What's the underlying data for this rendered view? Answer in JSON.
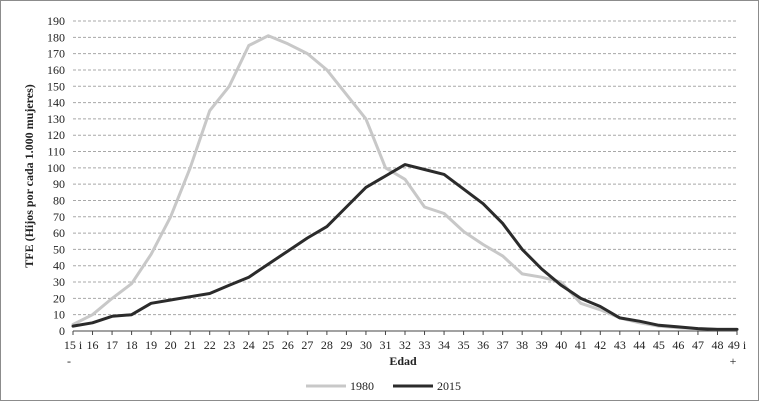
{
  "chart_data": {
    "type": "line",
    "title": "",
    "xlabel": "Edad",
    "ylabel": "TFE (Hijos por cada 1.000 mujeres)",
    "ylim": [
      0,
      190
    ],
    "ytick_step": 10,
    "grid": "horizontal dashed",
    "legend_position": "bottom-center",
    "categories": [
      {
        "top": "15 i",
        "bottom": "-"
      },
      {
        "top": "16",
        "bottom": ""
      },
      {
        "top": "17",
        "bottom": ""
      },
      {
        "top": "18",
        "bottom": ""
      },
      {
        "top": "19",
        "bottom": ""
      },
      {
        "top": "20",
        "bottom": ""
      },
      {
        "top": "21",
        "bottom": ""
      },
      {
        "top": "22",
        "bottom": ""
      },
      {
        "top": "23",
        "bottom": ""
      },
      {
        "top": "24",
        "bottom": ""
      },
      {
        "top": "25",
        "bottom": ""
      },
      {
        "top": "26",
        "bottom": ""
      },
      {
        "top": "27",
        "bottom": ""
      },
      {
        "top": "28",
        "bottom": ""
      },
      {
        "top": "29",
        "bottom": ""
      },
      {
        "top": "30",
        "bottom": ""
      },
      {
        "top": "31",
        "bottom": ""
      },
      {
        "top": "32",
        "bottom": ""
      },
      {
        "top": "33",
        "bottom": ""
      },
      {
        "top": "34",
        "bottom": ""
      },
      {
        "top": "35",
        "bottom": ""
      },
      {
        "top": "36",
        "bottom": ""
      },
      {
        "top": "37",
        "bottom": ""
      },
      {
        "top": "38",
        "bottom": ""
      },
      {
        "top": "39",
        "bottom": ""
      },
      {
        "top": "40",
        "bottom": ""
      },
      {
        "top": "41",
        "bottom": ""
      },
      {
        "top": "42",
        "bottom": ""
      },
      {
        "top": "43",
        "bottom": ""
      },
      {
        "top": "44",
        "bottom": ""
      },
      {
        "top": "45",
        "bottom": ""
      },
      {
        "top": "46",
        "bottom": ""
      },
      {
        "top": "47",
        "bottom": ""
      },
      {
        "top": "48",
        "bottom": ""
      },
      {
        "top": "49 i",
        "bottom": "+"
      }
    ],
    "series": [
      {
        "name": "1980",
        "color": "#c8c8c8",
        "values": [
          4,
          10,
          20,
          29,
          47,
          70,
          100,
          135,
          150,
          175,
          181,
          176,
          170,
          160,
          145,
          130,
          100,
          93,
          76,
          72,
          61,
          53,
          46,
          35,
          33,
          30,
          17,
          13,
          8,
          5,
          3,
          2,
          1.5,
          1,
          1
        ]
      },
      {
        "name": "2015",
        "color": "#2b2b2b",
        "values": [
          3,
          5,
          9,
          10,
          17,
          19,
          21,
          23,
          28,
          33,
          41,
          49,
          57,
          64,
          76,
          88,
          95,
          102,
          99,
          96,
          87,
          78,
          66,
          50,
          38,
          28,
          20,
          15,
          8,
          6,
          3.5,
          2.5,
          1.5,
          1,
          1
        ]
      }
    ]
  }
}
